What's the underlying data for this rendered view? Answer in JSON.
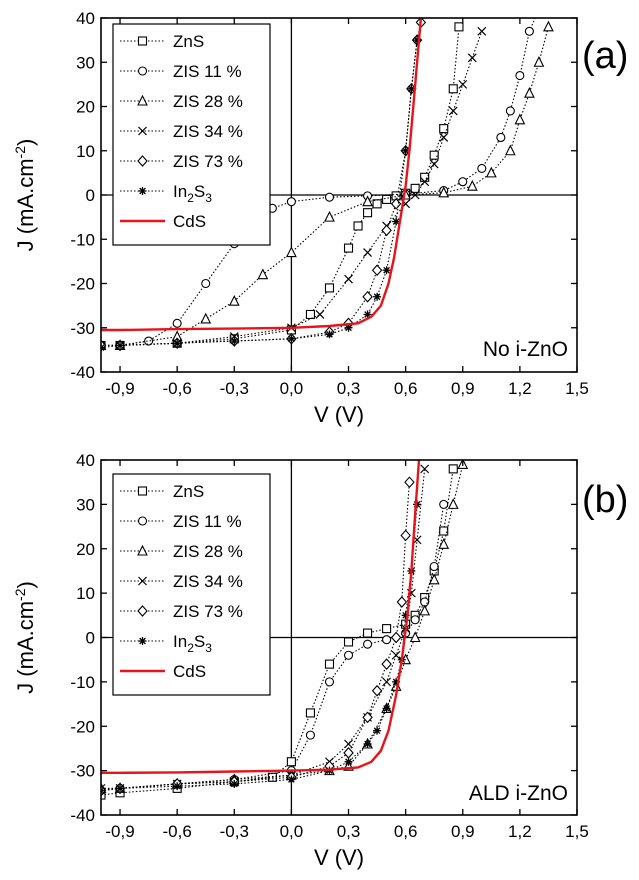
{
  "chart_data": [
    {
      "type": "line",
      "panel_label": "(a)",
      "annotation": "No i-ZnO",
      "xlabel": "V (V)",
      "ylabel": "J (mA.cm",
      "ylabel_sup": "-2",
      "ylabel_close": ")",
      "xlim": [
        -1.0,
        1.5
      ],
      "ylim": [
        -40,
        40
      ],
      "xticks": [
        "-0,9",
        "-0,6",
        "-0,3",
        "0,0",
        "0,3",
        "0,6",
        "0,9",
        "1,2",
        "1,5"
      ],
      "xtick_values": [
        -0.9,
        -0.6,
        -0.3,
        0.0,
        0.3,
        0.6,
        0.9,
        1.2,
        1.5
      ],
      "yticks": [
        "40",
        "30",
        "20",
        "10",
        "0",
        "-10",
        "-20",
        "-30",
        "-40"
      ],
      "ytick_values": [
        40,
        30,
        20,
        10,
        0,
        -10,
        -20,
        -30,
        -40
      ],
      "legend_position": "top-left",
      "series": [
        {
          "name": "ZnS",
          "marker": "square",
          "color": "#000000",
          "style": "dotted",
          "x": [
            -1.0,
            -0.9,
            -0.6,
            -0.3,
            0.0,
            0.1,
            0.2,
            0.3,
            0.35,
            0.4,
            0.45,
            0.5,
            0.55,
            0.6,
            0.65,
            0.7,
            0.75,
            0.8,
            0.85,
            0.88
          ],
          "y": [
            -34,
            -34,
            -33.5,
            -32.5,
            -30.5,
            -27,
            -21,
            -12,
            -7,
            -4,
            -2,
            -1,
            -0.2,
            0.4,
            1.5,
            4,
            9,
            15,
            24,
            38
          ]
        },
        {
          "name": "ZIS 11 %",
          "marker": "circle",
          "color": "#000000",
          "style": "dotted",
          "x": [
            -1.0,
            -0.9,
            -0.75,
            -0.6,
            -0.45,
            -0.3,
            -0.2,
            -0.1,
            0.0,
            0.2,
            0.4,
            0.6,
            0.8,
            0.9,
            1.0,
            1.1,
            1.15,
            1.2,
            1.25,
            1.3
          ],
          "y": [
            -34,
            -34,
            -33,
            -29,
            -20,
            -11,
            -6,
            -3,
            -1.5,
            -0.5,
            -0.2,
            0.2,
            1,
            3,
            6,
            13,
            19,
            27,
            37,
            42
          ]
        },
        {
          "name": "ZIS 28 %",
          "marker": "triangle",
          "color": "#000000",
          "style": "dotted",
          "x": [
            -1.0,
            -0.9,
            -0.6,
            -0.45,
            -0.3,
            -0.15,
            0.0,
            0.2,
            0.4,
            0.6,
            0.8,
            0.95,
            1.05,
            1.15,
            1.2,
            1.25,
            1.3,
            1.35
          ],
          "y": [
            -34,
            -34,
            -32,
            -28,
            -24,
            -18,
            -13,
            -5,
            -1.5,
            0,
            0.5,
            2,
            5,
            10,
            17,
            23,
            30,
            38
          ]
        },
        {
          "name": "ZIS 34 %",
          "marker": "x",
          "color": "#000000",
          "style": "dotted",
          "x": [
            -1.0,
            -0.9,
            -0.6,
            -0.3,
            0.0,
            0.15,
            0.3,
            0.4,
            0.5,
            0.6,
            0.65,
            0.7,
            0.75,
            0.8,
            0.85,
            0.9,
            0.95,
            1.0
          ],
          "y": [
            -34,
            -34,
            -33.5,
            -32,
            -30,
            -27,
            -19,
            -13,
            -7,
            -2,
            0,
            3,
            7,
            13,
            19,
            25,
            31,
            37
          ]
        },
        {
          "name": "ZIS 73 %",
          "marker": "diamond",
          "color": "#000000",
          "style": "dotted",
          "x": [
            -1.0,
            -0.9,
            -0.6,
            -0.3,
            0.0,
            0.2,
            0.3,
            0.4,
            0.45,
            0.5,
            0.55,
            0.6,
            0.63,
            0.66,
            0.68
          ],
          "y": [
            -34,
            -34,
            -33.5,
            -33,
            -32.5,
            -31,
            -29,
            -23,
            -17,
            -8,
            -2,
            10,
            24,
            35,
            39
          ]
        },
        {
          "name": "In2S3",
          "label_main": "In",
          "label_sub": "2",
          "label_tail": "S",
          "label_sub2": "3",
          "marker": "asterisk",
          "color": "#000000",
          "style": "dotted",
          "x": [
            -1.0,
            -0.9,
            -0.6,
            -0.3,
            0.0,
            0.2,
            0.3,
            0.4,
            0.45,
            0.5,
            0.55,
            0.6,
            0.63,
            0.66
          ],
          "y": [
            -34.5,
            -34,
            -33.5,
            -33,
            -32.5,
            -31.5,
            -30,
            -27,
            -23,
            -17,
            -6,
            10,
            24,
            35
          ]
        },
        {
          "name": "CdS",
          "marker": "none",
          "color": "#e8141a",
          "style": "solid",
          "x": [
            -1.0,
            -0.9,
            -0.6,
            -0.3,
            0.0,
            0.2,
            0.35,
            0.42,
            0.47,
            0.51,
            0.54,
            0.57,
            0.6,
            0.62,
            0.64,
            0.66,
            0.68
          ],
          "y": [
            -30.5,
            -30.5,
            -30.3,
            -30.2,
            -30,
            -29.6,
            -29,
            -27.5,
            -25,
            -20,
            -14,
            -6,
            2,
            10,
            20,
            30,
            40
          ]
        }
      ]
    },
    {
      "type": "line",
      "panel_label": "(b)",
      "annotation": "ALD i-ZnO",
      "xlabel": "V (V)",
      "ylabel": "J (mA.cm",
      "ylabel_sup": "-2",
      "ylabel_close": ")",
      "xlim": [
        -1.0,
        1.5
      ],
      "ylim": [
        -40,
        40
      ],
      "xticks": [
        "-0,9",
        "-0,6",
        "-0,3",
        "0,0",
        "0,3",
        "0,6",
        "0,9",
        "1,2",
        "1,5"
      ],
      "xtick_values": [
        -0.9,
        -0.6,
        -0.3,
        0.0,
        0.3,
        0.6,
        0.9,
        1.2,
        1.5
      ],
      "yticks": [
        "40",
        "30",
        "20",
        "10",
        "0",
        "-10",
        "-20",
        "-30",
        "-40"
      ],
      "ytick_values": [
        40,
        30,
        20,
        10,
        0,
        -10,
        -20,
        -30,
        -40
      ],
      "legend_position": "top-left",
      "series": [
        {
          "name": "ZnS",
          "marker": "square",
          "color": "#000000",
          "style": "dotted",
          "x": [
            -1.0,
            -0.9,
            -0.6,
            -0.3,
            -0.1,
            0.0,
            0.1,
            0.2,
            0.3,
            0.4,
            0.5,
            0.6,
            0.65,
            0.7,
            0.75,
            0.8,
            0.85
          ],
          "y": [
            -35.5,
            -35,
            -34,
            -32.5,
            -31.5,
            -28,
            -17,
            -6,
            -1,
            1,
            2,
            3,
            5,
            9,
            15,
            24,
            38
          ]
        },
        {
          "name": "ZIS 11 %",
          "marker": "circle",
          "color": "#000000",
          "style": "dotted",
          "x": [
            -1.0,
            -0.9,
            -0.6,
            -0.3,
            0.0,
            0.1,
            0.2,
            0.3,
            0.4,
            0.5,
            0.6,
            0.65,
            0.7,
            0.75,
            0.8
          ],
          "y": [
            -34.5,
            -34,
            -33,
            -32,
            -30,
            -22,
            -10,
            -4,
            -1.5,
            -0.5,
            1,
            4,
            8,
            16,
            30
          ]
        },
        {
          "name": "ZIS 28 %",
          "marker": "triangle",
          "color": "#000000",
          "style": "dotted",
          "x": [
            -1.0,
            -0.9,
            -0.6,
            -0.3,
            0.0,
            0.2,
            0.3,
            0.4,
            0.5,
            0.55,
            0.6,
            0.65,
            0.7,
            0.75,
            0.8,
            0.85,
            0.9
          ],
          "y": [
            -34,
            -34,
            -33,
            -32,
            -31,
            -30,
            -29,
            -24,
            -16,
            -11,
            -5,
            0,
            6,
            13,
            21,
            30,
            39
          ]
        },
        {
          "name": "ZIS 34 %",
          "marker": "x",
          "color": "#000000",
          "style": "dotted",
          "x": [
            -1.0,
            -0.9,
            -0.6,
            -0.3,
            0.0,
            0.2,
            0.3,
            0.4,
            0.5,
            0.55,
            0.6,
            0.63,
            0.66,
            0.7
          ],
          "y": [
            -34,
            -34,
            -33,
            -32.5,
            -31,
            -28,
            -24,
            -18,
            -10,
            -4,
            2,
            10,
            22,
            38
          ]
        },
        {
          "name": "ZIS 73 %",
          "marker": "diamond",
          "color": "#000000",
          "style": "dotted",
          "x": [
            -1.0,
            -0.9,
            -0.6,
            -0.3,
            0.0,
            0.2,
            0.3,
            0.4,
            0.45,
            0.5,
            0.55,
            0.58,
            0.6,
            0.62
          ],
          "y": [
            -34.5,
            -34,
            -33,
            -32.5,
            -31.5,
            -29,
            -26,
            -18,
            -12,
            -6,
            0,
            8,
            23,
            35
          ]
        },
        {
          "name": "In2S3",
          "label_main": "In",
          "label_sub": "2",
          "label_tail": "S",
          "label_sub2": "3",
          "marker": "asterisk",
          "color": "#000000",
          "style": "dotted",
          "x": [
            -1.0,
            -0.9,
            -0.6,
            -0.3,
            0.0,
            0.2,
            0.3,
            0.4,
            0.45,
            0.5,
            0.55,
            0.58,
            0.6,
            0.63,
            0.66
          ],
          "y": [
            -34.5,
            -34,
            -33.5,
            -33,
            -32,
            -30,
            -28,
            -24,
            -21,
            -16,
            -10,
            -5,
            5,
            15,
            30
          ]
        },
        {
          "name": "CdS",
          "marker": "none",
          "color": "#e8141a",
          "style": "solid",
          "x": [
            -1.0,
            -0.9,
            -0.6,
            -0.3,
            0.0,
            0.2,
            0.35,
            0.42,
            0.47,
            0.51,
            0.55,
            0.58,
            0.61,
            0.63,
            0.65,
            0.67
          ],
          "y": [
            -30.5,
            -30.5,
            -30.4,
            -30.2,
            -30,
            -29.8,
            -29.3,
            -28,
            -25.5,
            -21,
            -13,
            -5,
            5,
            15,
            28,
            40
          ]
        }
      ]
    }
  ]
}
